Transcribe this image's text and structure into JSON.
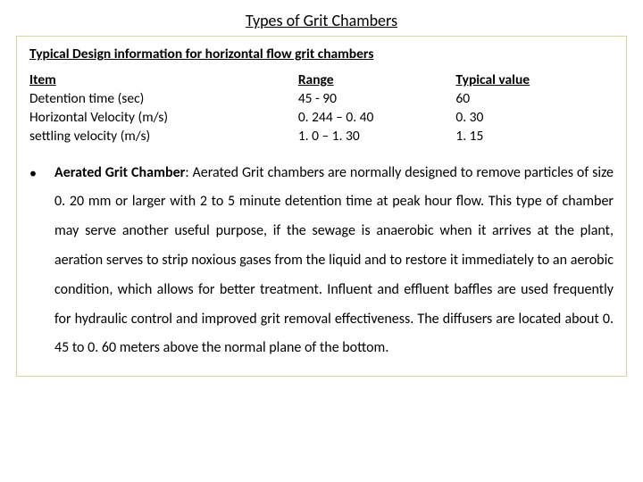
{
  "title": "Types of Grit Chambers",
  "subtitle": "Typical Design information for horizontal flow grit chambers",
  "table": {
    "headers": {
      "item": "Item",
      "range": "Range",
      "typical": "Typical value"
    },
    "rows": [
      {
        "item": "Detention time (sec)",
        "range": "45 - 90",
        "typical": "60"
      },
      {
        "item": "Horizontal Velocity (m/s)",
        "range": "0. 244 – 0. 40",
        "typical": "0. 30"
      },
      {
        "item": "settling velocity (m/s)",
        "range": "1. 0 – 1. 30",
        "typical": "1. 15"
      }
    ]
  },
  "bullet": {
    "mark": "•",
    "lead_bold": "Aerated Grit Chamber",
    "body": ": Aerated Grit chambers are normally designed to remove particles of size 0. 20 mm or larger with 2 to 5 minute detention time at peak hour flow. This type of chamber may serve another useful purpose, if the sewage is anaerobic when it arrives at the plant, aeration serves to strip noxious gases from the liquid and to restore it immediately to an aerobic condition, which allows for better treatment. Influent and effluent baffles are used frequently for hydraulic control and improved grit removal effectiveness. The diffusers are located about 0. 45 to 0. 60 meters above the normal plane of the bottom."
  },
  "colors": {
    "border": "#d6d69a",
    "text": "#000000",
    "background": "#ffffff"
  },
  "fonts": {
    "family": "Calibri, Arial, sans-serif",
    "title_size": 18,
    "body_size": 16,
    "table_size": 15.5
  }
}
